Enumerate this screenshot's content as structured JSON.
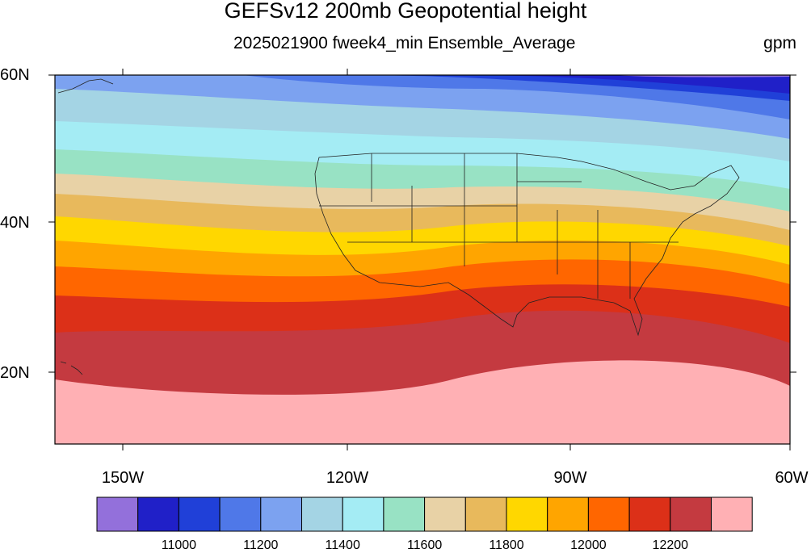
{
  "title": "GEFSv12 200mb Geopotential height",
  "subtitle": "2025021900 fweek4_min Ensemble_Average",
  "units": "gpm",
  "lat_ticks": [
    "60N",
    "40N",
    "20N"
  ],
  "lon_ticks": [
    "150W",
    "120W",
    "90W",
    "60W"
  ],
  "colorbar": {
    "labels": [
      "11000",
      "11200",
      "11400",
      "11600",
      "11800",
      "12000",
      "12200"
    ],
    "colors": [
      "#9370db",
      "#2020c8",
      "#2040d8",
      "#4f78e8",
      "#7ca2f0",
      "#a4d4e4",
      "#a4ecf4",
      "#98e2c4",
      "#e8d2a6",
      "#e8b95c",
      "#ffd700",
      "#ffa500",
      "#ff6600",
      "#dc3018",
      "#c43a40",
      "#ffb0b4"
    ]
  },
  "chart_data": {
    "type": "heatmap",
    "variable": "200mb Geopotential height",
    "units": "gpm",
    "region": {
      "lon_range": [
        "159W",
        "60W"
      ],
      "lat_range": [
        "10N",
        "60N"
      ]
    },
    "contour_levels": [
      10900,
      10950,
      11000,
      11100,
      11200,
      11300,
      11400,
      11500,
      11600,
      11700,
      11800,
      11900,
      12000,
      12100,
      12200,
      12300
    ],
    "field_description": "Heights increase southward; lowest values (~10900 gpm) over northern Canada/NE near 57N 75W, highest (>12300 gpm) in tropics south of ~20N"
  }
}
